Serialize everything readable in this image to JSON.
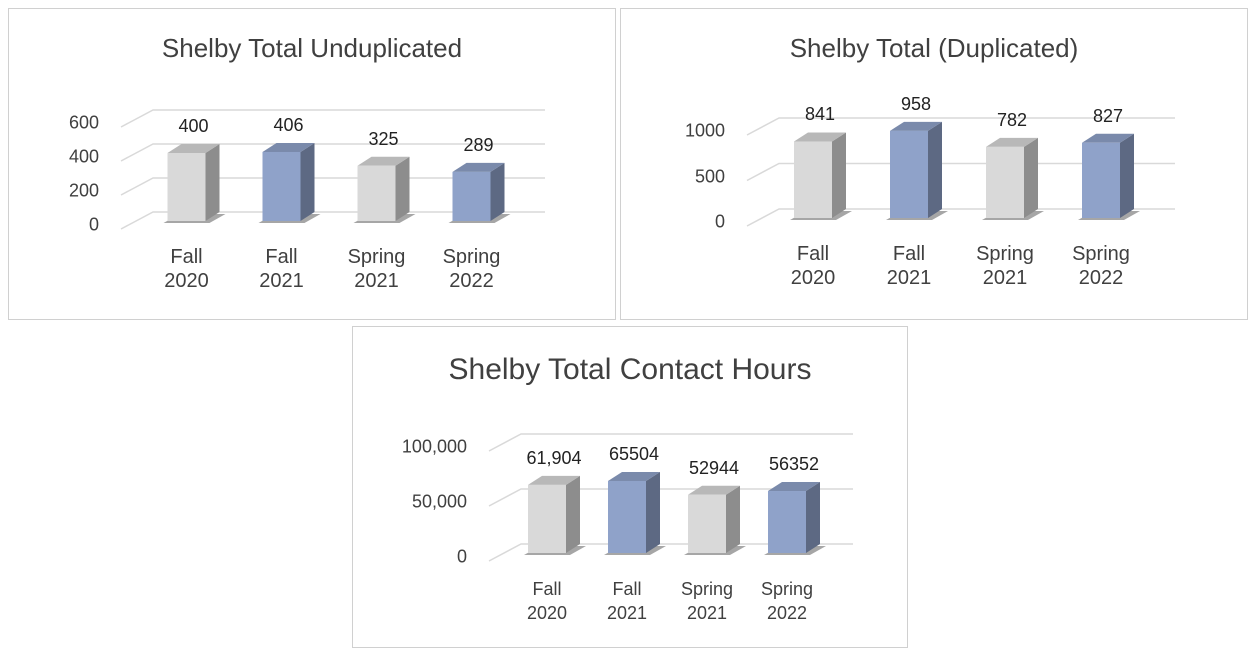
{
  "chart_data": [
    {
      "type": "bar3d",
      "title": "Shelby Total Unduplicated",
      "categories": [
        "Fall 2020",
        "Fall 2021",
        "Spring 2021",
        "Spring 2022"
      ],
      "values": [
        400,
        406,
        325,
        289
      ],
      "colors": [
        "#d9d9d9",
        "#8fa2c9",
        "#d9d9d9",
        "#8fa2c9"
      ],
      "ylim": [
        0,
        600
      ],
      "yticks": [
        0,
        200,
        400,
        600
      ],
      "grid": true
    },
    {
      "type": "bar3d",
      "title": "Shelby Total (Duplicated)",
      "categories": [
        "Fall 2020",
        "Fall 2021",
        "Spring 2021",
        "Spring 2022"
      ],
      "values": [
        841,
        958,
        782,
        827
      ],
      "colors": [
        "#d9d9d9",
        "#8fa2c9",
        "#d9d9d9",
        "#8fa2c9"
      ],
      "ylim": [
        0,
        1000
      ],
      "yticks": [
        0,
        500,
        1000
      ],
      "grid": true
    },
    {
      "type": "bar3d",
      "title": "Shelby Total Contact Hours",
      "categories": [
        "Fall 2020",
        "Fall 2021",
        "Spring 2021",
        "Spring 2022"
      ],
      "values": [
        61904,
        65504,
        52944,
        56352
      ],
      "value_labels": [
        "61,904",
        "65504",
        "52944",
        "56352"
      ],
      "colors": [
        "#d9d9d9",
        "#8fa2c9",
        "#d9d9d9",
        "#8fa2c9"
      ],
      "ylim": [
        0,
        100000
      ],
      "yticks": [
        0,
        {
          "value": 50000,
          "label": "50,000"
        },
        {
          "value": 100000,
          "label": "100,000"
        }
      ],
      "grid": true
    }
  ]
}
